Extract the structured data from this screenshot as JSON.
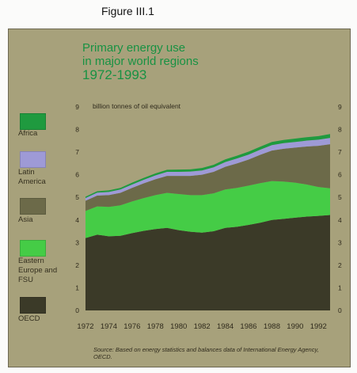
{
  "figure_label": "Figure III.1",
  "title_lines": [
    "Primary energy use",
    "in major world regions",
    "1972-1993"
  ],
  "colors": {
    "panel": "#a7a17b",
    "title": "#189243",
    "africa": "#1f9a3f",
    "latin_america": "#9e9ad6",
    "asia": "#6c6a49",
    "eastern_europe": "#45cc46",
    "oecd": "#3b3a28"
  },
  "legend": [
    {
      "key": "africa",
      "label": "Africa"
    },
    {
      "key": "latin_america",
      "label": "Latin America"
    },
    {
      "key": "asia",
      "label": "Asia"
    },
    {
      "key": "eastern_europe",
      "label": "Eastern Europe and FSU"
    },
    {
      "key": "oecd",
      "label": "OECD"
    }
  ],
  "source_note": "Source: Based on energy statistics and balances data of International Energy Agency, OECD.",
  "chart_data": {
    "type": "area",
    "stacked": true,
    "title": "Primary energy use in major world regions 1972-1993",
    "ylabel": "billion tonnes of oil equivalent",
    "xlabel": "",
    "x": [
      1972,
      1973,
      1974,
      1975,
      1976,
      1977,
      1978,
      1979,
      1980,
      1981,
      1982,
      1983,
      1984,
      1985,
      1986,
      1987,
      1988,
      1989,
      1990,
      1991,
      1992,
      1993
    ],
    "x_ticks": [
      "1972",
      "1974",
      "1976",
      "1978",
      "1980",
      "1982",
      "1984",
      "1986",
      "1988",
      "1990",
      "1992"
    ],
    "ylim": [
      0,
      9
    ],
    "y_ticks_left": [
      "0",
      "1",
      "2",
      "3",
      "4",
      "5",
      "6",
      "7",
      "8",
      "9"
    ],
    "y_ticks_right": [
      "0",
      "1",
      "2",
      "3",
      "4",
      "5",
      "6",
      "7",
      "8",
      "9"
    ],
    "grid": false,
    "legend_position": "left",
    "series": [
      {
        "name": "OECD",
        "values": [
          3.2,
          3.35,
          3.28,
          3.3,
          3.42,
          3.52,
          3.6,
          3.65,
          3.55,
          3.48,
          3.44,
          3.5,
          3.65,
          3.7,
          3.78,
          3.88,
          4.0,
          4.05,
          4.1,
          4.15,
          4.18,
          4.22
        ]
      },
      {
        "name": "Eastern Europe and FSU",
        "values": [
          1.2,
          1.25,
          1.3,
          1.35,
          1.4,
          1.45,
          1.5,
          1.55,
          1.6,
          1.62,
          1.66,
          1.68,
          1.7,
          1.72,
          1.74,
          1.75,
          1.72,
          1.65,
          1.55,
          1.42,
          1.28,
          1.18
        ]
      },
      {
        "name": "Asia",
        "values": [
          0.45,
          0.48,
          0.52,
          0.55,
          0.6,
          0.65,
          0.7,
          0.75,
          0.8,
          0.85,
          0.9,
          0.95,
          1.0,
          1.08,
          1.15,
          1.25,
          1.35,
          1.45,
          1.55,
          1.68,
          1.82,
          1.95
        ]
      },
      {
        "name": "Latin America",
        "values": [
          0.12,
          0.13,
          0.14,
          0.15,
          0.15,
          0.16,
          0.17,
          0.18,
          0.18,
          0.19,
          0.19,
          0.2,
          0.21,
          0.22,
          0.22,
          0.23,
          0.24,
          0.25,
          0.25,
          0.26,
          0.27,
          0.28
        ]
      },
      {
        "name": "Africa",
        "values": [
          0.06,
          0.06,
          0.07,
          0.07,
          0.08,
          0.08,
          0.09,
          0.09,
          0.1,
          0.1,
          0.11,
          0.11,
          0.12,
          0.12,
          0.13,
          0.13,
          0.14,
          0.14,
          0.15,
          0.15,
          0.16,
          0.17
        ]
      }
    ]
  }
}
